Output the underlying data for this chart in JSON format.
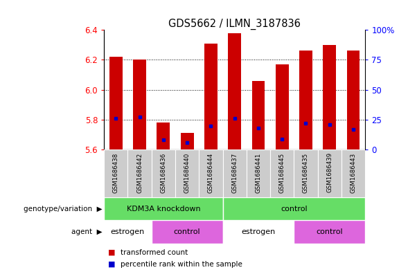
{
  "title": "GDS5662 / ILMN_3187836",
  "samples": [
    "GSM1686438",
    "GSM1686442",
    "GSM1686436",
    "GSM1686440",
    "GSM1686444",
    "GSM1686437",
    "GSM1686441",
    "GSM1686445",
    "GSM1686435",
    "GSM1686439",
    "GSM1686443"
  ],
  "transformed_counts": [
    6.22,
    6.2,
    5.78,
    5.71,
    6.31,
    6.38,
    6.06,
    6.17,
    6.26,
    6.3,
    6.26
  ],
  "percentile_ranks": [
    26,
    27,
    8,
    6,
    20,
    26,
    18,
    9,
    22,
    21,
    17
  ],
  "y_min": 5.6,
  "y_max": 6.4,
  "bar_color": "#cc0000",
  "blue_color": "#0000cc",
  "genotype_groups": [
    {
      "label": "KDM3A knockdown",
      "start": 0,
      "end": 5,
      "color": "#66dd66"
    },
    {
      "label": "control",
      "start": 5,
      "end": 11,
      "color": "#66dd66"
    }
  ],
  "agent_groups": [
    {
      "label": "estrogen",
      "start": 0,
      "end": 2,
      "color": "#ffffff"
    },
    {
      "label": "control",
      "start": 2,
      "end": 5,
      "color": "#dd66dd"
    },
    {
      "label": "estrogen",
      "start": 5,
      "end": 8,
      "color": "#ffffff"
    },
    {
      "label": "control",
      "start": 8,
      "end": 11,
      "color": "#dd66dd"
    }
  ],
  "xlabel_genotype": "genotype/variation",
  "xlabel_agent": "agent",
  "legend_red": "transformed count",
  "legend_blue": "percentile rank within the sample",
  "yticks_left": [
    5.6,
    5.8,
    6.0,
    6.2,
    6.4
  ],
  "yticks_right": [
    0,
    25,
    50,
    75,
    100
  ],
  "grid_lines": [
    5.8,
    6.0,
    6.2
  ]
}
